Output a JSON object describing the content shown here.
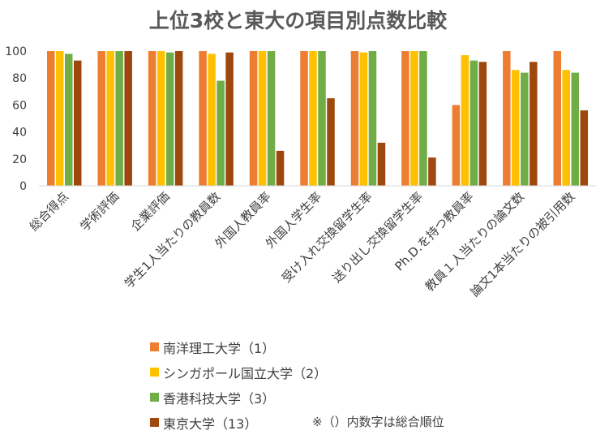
{
  "title": "上位3校と東大の項目別点数比較",
  "footnote": "※（）内数字は総合順位",
  "chart_data": {
    "type": "bar",
    "title": "上位3校と東大の項目別点数比較",
    "categories": [
      "総合得点",
      "学術評価",
      "企業評価",
      "学生1人当たりの教員数",
      "外国人教員率",
      "外国人学生率",
      "受け入れ交換留学生率",
      "送り出し交換留学生率",
      "Ph.D.を持つ教員率",
      "教員１人当たりの論文数",
      "論文1本当たりの被引用数"
    ],
    "ylim": [
      0,
      100
    ],
    "yticks": [
      0,
      20,
      40,
      60,
      80,
      100
    ],
    "grid": false,
    "legend_position": "bottom",
    "series": [
      {
        "name": "南洋理工大学（1）",
        "color": "#ED7D31",
        "values": [
          100,
          100,
          100,
          100,
          100,
          100,
          100,
          100,
          60,
          100,
          100
        ]
      },
      {
        "name": "シンガポール国立大学（2）",
        "color": "#FFC000",
        "values": [
          100,
          100,
          100,
          98,
          100,
          100,
          99,
          100,
          97,
          86,
          86
        ]
      },
      {
        "name": "香港科技大学（3）",
        "color": "#70AD47",
        "values": [
          98,
          100,
          99,
          78,
          100,
          100,
          100,
          100,
          93,
          84,
          84
        ]
      },
      {
        "name": "東京大学（13）",
        "color": "#9E480E",
        "values": [
          93,
          100,
          100,
          99,
          26,
          65,
          32,
          21,
          92,
          92,
          56
        ]
      }
    ]
  }
}
